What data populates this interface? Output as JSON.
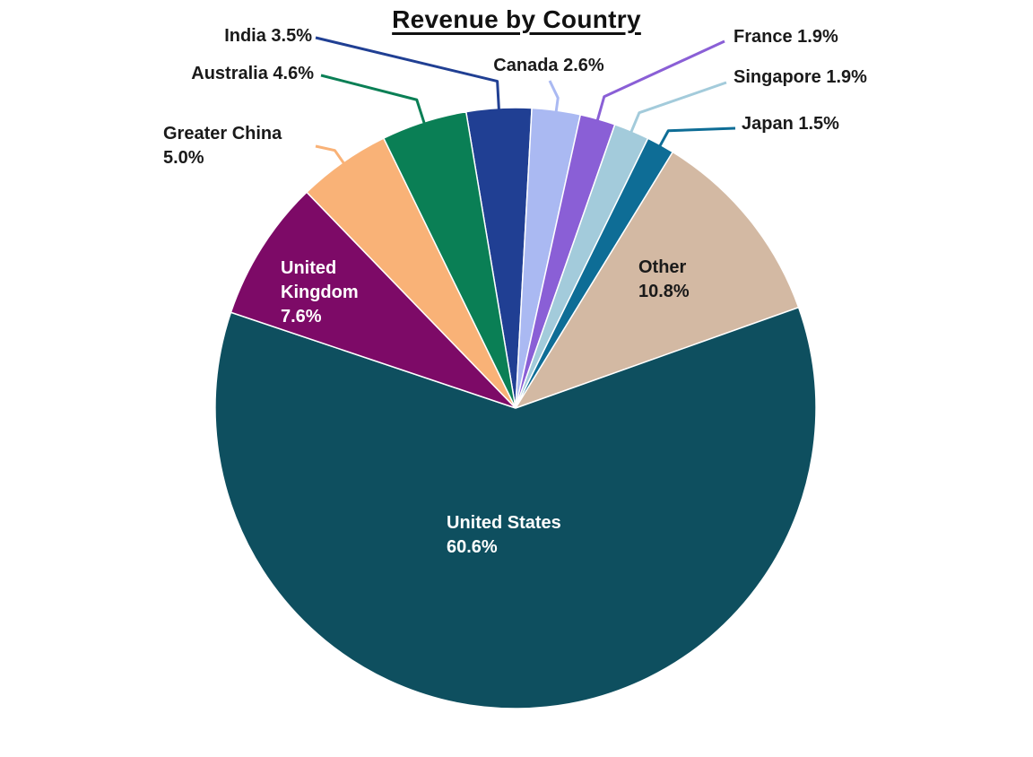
{
  "chart_data": {
    "type": "pie",
    "title": "Revenue by Country",
    "unit": "%",
    "layout_hints": {
      "start_angle_deg": 99.5,
      "direction": "clockwise",
      "legend": "none",
      "label_style": "callouts-outside-for-small-slices, labels-inside-for-large-slices"
    },
    "slices": [
      {
        "label": "India",
        "value": 3.5,
        "color": "#203f93",
        "callout": "India 3.5%"
      },
      {
        "label": "Canada",
        "value": 2.6,
        "color": "#aab9f2",
        "callout": "Canada 2.6%"
      },
      {
        "label": "France",
        "value": 1.9,
        "color": "#8a5fd6",
        "callout": "France 1.9%"
      },
      {
        "label": "Singapore",
        "value": 1.9,
        "color": "#a3cbdb",
        "callout": "Singapore 1.9%"
      },
      {
        "label": "Japan",
        "value": 1.5,
        "color": "#0e6d96",
        "callout": "Japan 1.5%"
      },
      {
        "label": "Other",
        "value": 10.8,
        "color": "#d3b9a3",
        "lines": [
          "Other",
          "10.8%"
        ]
      },
      {
        "label": "United States",
        "value": 60.6,
        "color": "#0e4f5f",
        "lines": [
          "United States",
          "60.6%"
        ]
      },
      {
        "label": "United Kingdom",
        "value": 7.6,
        "color": "#7d0a67",
        "lines": [
          "United",
          "Kingdom",
          "7.6%"
        ]
      },
      {
        "label": "Greater China",
        "value": 5.0,
        "color": "#f9b277",
        "lines": [
          "Greater China",
          "5.0%"
        ]
      },
      {
        "label": "Australia",
        "value": 4.6,
        "color": "#0a7f55",
        "callout": "Australia 4.6%"
      }
    ]
  }
}
